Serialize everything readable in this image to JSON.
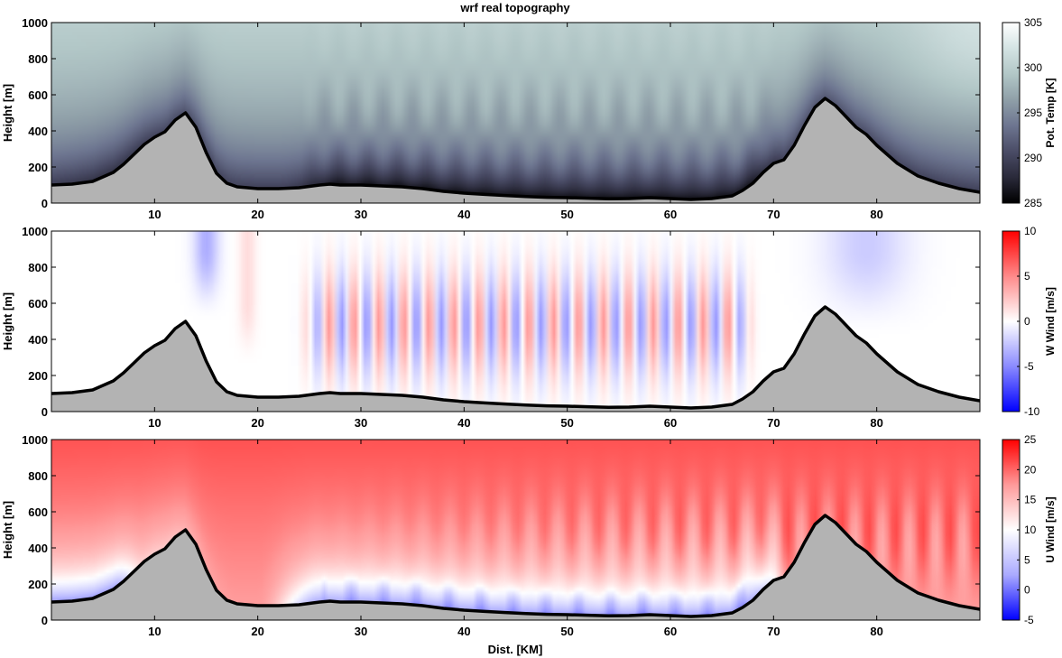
{
  "figure": {
    "title": "wrf real topography",
    "xlabel": "Dist. [KM]"
  },
  "chart_data": [
    {
      "type": "heatmap",
      "ylabel": "Height [m]",
      "colorbar_label": "Pot. Temp [K]",
      "colormap": [
        "#000000",
        "#2a2a3a",
        "#4a4c66",
        "#6d7590",
        "#8f9fa8",
        "#b2c7c7",
        "#d4e3e3",
        "#ffffff"
      ],
      "clim": [
        285,
        305
      ],
      "colorbar_ticks": [
        285,
        290,
        295,
        300,
        305
      ],
      "xlim": [
        0,
        90
      ],
      "ylim": [
        0,
        1000
      ],
      "x_ticks": [
        10,
        20,
        30,
        40,
        50,
        60,
        70,
        80
      ],
      "y_ticks": [
        0,
        200,
        400,
        600,
        800,
        1000
      ]
    },
    {
      "type": "heatmap",
      "ylabel": "Height [m]",
      "colorbar_label": "W Wind [m/s]",
      "colormap": [
        "#0000ff",
        "#8a8aff",
        "#ffffff",
        "#ff8a8a",
        "#ff0000"
      ],
      "clim": [
        -10,
        10
      ],
      "colorbar_ticks": [
        -10,
        -5,
        0,
        5,
        10
      ],
      "xlim": [
        0,
        90
      ],
      "ylim": [
        0,
        1000
      ],
      "x_ticks": [
        10,
        20,
        30,
        40,
        50,
        60,
        70,
        80
      ],
      "y_ticks": [
        0,
        200,
        400,
        600,
        800,
        1000
      ]
    },
    {
      "type": "heatmap",
      "ylabel": "Height [m]",
      "colorbar_label": "U Wind [m/s]",
      "colormap": [
        "#0000ff",
        "#aaaaff",
        "#ffffff",
        "#ff9a9a",
        "#ff0000"
      ],
      "clim": [
        -5,
        25
      ],
      "colorbar_ticks": [
        -5,
        0,
        5,
        10,
        15,
        20,
        25
      ],
      "xlim": [
        0,
        90
      ],
      "ylim": [
        0,
        1000
      ],
      "x_ticks": [
        10,
        20,
        30,
        40,
        50,
        60,
        70,
        80
      ],
      "y_ticks": [
        0,
        200,
        400,
        600,
        800,
        1000
      ]
    }
  ],
  "terrain_profile": {
    "x": [
      0,
      2,
      4,
      6,
      7,
      8,
      9,
      10,
      11,
      12,
      13,
      14,
      15,
      16,
      17,
      18,
      20,
      22,
      24,
      26,
      27,
      28,
      30,
      32,
      34,
      36,
      38,
      40,
      42,
      44,
      46,
      48,
      50,
      52,
      54,
      56,
      58,
      60,
      62,
      64,
      66,
      67,
      68,
      69,
      70,
      71,
      72,
      73,
      74,
      75,
      76,
      77,
      78,
      79,
      80,
      82,
      84,
      86,
      88,
      90
    ],
    "height": [
      100,
      105,
      120,
      170,
      215,
      270,
      325,
      365,
      395,
      460,
      500,
      420,
      280,
      165,
      110,
      90,
      80,
      80,
      85,
      100,
      105,
      100,
      100,
      95,
      90,
      80,
      65,
      55,
      48,
      42,
      36,
      32,
      30,
      27,
      24,
      25,
      30,
      25,
      20,
      25,
      40,
      70,
      110,
      170,
      220,
      240,
      320,
      430,
      530,
      580,
      540,
      480,
      420,
      380,
      320,
      220,
      150,
      110,
      80,
      60
    ]
  }
}
